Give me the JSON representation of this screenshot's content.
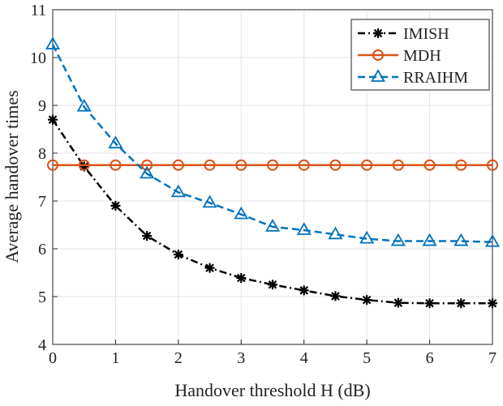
{
  "chart_data": {
    "type": "line",
    "xlabel": "Handover threshold H (dB)",
    "ylabel": "Average handover times",
    "x": [
      0,
      0.5,
      1,
      1.5,
      2,
      2.5,
      3,
      3.5,
      4,
      4.5,
      5,
      5.5,
      6,
      6.5,
      7
    ],
    "series": [
      {
        "name": "IMISH",
        "color": "#000000",
        "marker": "asterisk",
        "dash": "dashdot",
        "values": [
          8.7,
          7.72,
          6.9,
          6.27,
          5.88,
          5.6,
          5.39,
          5.25,
          5.13,
          5.01,
          4.93,
          4.87,
          4.86,
          4.86,
          4.86
        ]
      },
      {
        "name": "MDH",
        "color": "#d95319",
        "marker": "circle",
        "dash": "solid",
        "values": [
          7.75,
          7.75,
          7.75,
          7.75,
          7.75,
          7.75,
          7.75,
          7.75,
          7.75,
          7.75,
          7.75,
          7.75,
          7.75,
          7.75,
          7.75
        ]
      },
      {
        "name": "RRAIHM",
        "color": "#0072bd",
        "marker": "triangle",
        "dash": "dashed",
        "values": [
          10.27,
          8.97,
          8.2,
          7.57,
          7.18,
          6.96,
          6.72,
          6.46,
          6.39,
          6.3,
          6.21,
          6.16,
          6.16,
          6.16,
          6.14
        ]
      }
    ],
    "xlim": [
      0,
      7
    ],
    "xticks": [
      0,
      1,
      2,
      3,
      4,
      5,
      6,
      7
    ],
    "ylim": [
      4,
      11
    ],
    "yticks": [
      4,
      5,
      6,
      7,
      8,
      9,
      10,
      11
    ],
    "grid": true,
    "legend": "upper-right"
  }
}
